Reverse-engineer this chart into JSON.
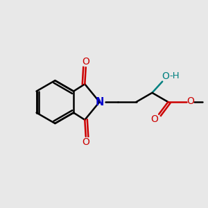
{
  "background_color": "#e8e8e8",
  "bond_color": "#000000",
  "N_color": "#0000cc",
  "O_color": "#cc0000",
  "OH_color": "#008080",
  "figsize": [
    3.0,
    3.0
  ],
  "dpi": 100,
  "xlim": [
    0,
    10
  ],
  "ylim": [
    0,
    10
  ]
}
